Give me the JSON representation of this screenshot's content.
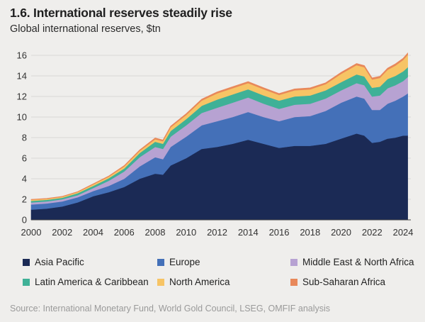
{
  "title": "1.6. International reserves steadily rise",
  "subtitle": "Global international reserves, $tn",
  "source": "Source: International Monetary Fund, World Gold Council, LSEG, OMFIF analysis",
  "chart_data": {
    "type": "area",
    "stacked": true,
    "ylim": [
      0,
      16
    ],
    "yticks": [
      "0",
      "2",
      "4",
      "6",
      "8",
      "10",
      "12",
      "14",
      "16"
    ],
    "xlim": [
      2000,
      2024.5
    ],
    "xticks": [
      "2000",
      "2002",
      "2004",
      "2006",
      "2008",
      "2010",
      "2012",
      "2014",
      "2016",
      "2018",
      "2020",
      "2022",
      "2024"
    ],
    "grid": true,
    "legend_position": "bottom",
    "x": [
      2000,
      2001,
      2002,
      2003,
      2004,
      2005,
      2006,
      2007,
      2008,
      2008.5,
      2009,
      2010,
      2011,
      2012,
      2013,
      2014,
      2015,
      2016,
      2017,
      2018,
      2019,
      2020,
      2021,
      2021.5,
      2022,
      2022.5,
      2023,
      2023.5,
      2024,
      2024.3
    ],
    "series": [
      {
        "name": "Asia Pacific",
        "color": "#1b2a55",
        "values": [
          1.0,
          1.1,
          1.3,
          1.7,
          2.3,
          2.7,
          3.2,
          4.0,
          4.5,
          4.4,
          5.3,
          6.0,
          6.9,
          7.1,
          7.4,
          7.8,
          7.4,
          7.0,
          7.2,
          7.2,
          7.4,
          7.9,
          8.4,
          8.2,
          7.5,
          7.6,
          7.9,
          8.0,
          8.2,
          8.2
        ]
      },
      {
        "name": "Europe",
        "color": "#4470b8",
        "values": [
          0.5,
          0.5,
          0.5,
          0.5,
          0.5,
          0.6,
          0.8,
          1.2,
          1.6,
          1.5,
          1.8,
          2.1,
          2.3,
          2.5,
          2.6,
          2.7,
          2.6,
          2.6,
          2.8,
          2.9,
          3.2,
          3.5,
          3.6,
          3.6,
          3.2,
          3.1,
          3.4,
          3.6,
          3.8,
          4.1
        ]
      },
      {
        "name": "Middle East & North Africa",
        "color": "#b7a2d2",
        "values": [
          0.2,
          0.2,
          0.2,
          0.2,
          0.3,
          0.5,
          0.7,
          0.9,
          1.0,
          1.0,
          1.0,
          1.1,
          1.2,
          1.3,
          1.4,
          1.4,
          1.3,
          1.2,
          1.2,
          1.2,
          1.2,
          1.2,
          1.3,
          1.3,
          1.3,
          1.4,
          1.5,
          1.5,
          1.5,
          1.6
        ]
      },
      {
        "name": "Latin America & Caribbean",
        "color": "#3fb197",
        "values": [
          0.15,
          0.15,
          0.15,
          0.2,
          0.2,
          0.25,
          0.3,
          0.4,
          0.5,
          0.5,
          0.55,
          0.6,
          0.7,
          0.8,
          0.8,
          0.8,
          0.8,
          0.8,
          0.8,
          0.8,
          0.8,
          0.8,
          0.85,
          0.85,
          0.85,
          0.85,
          0.9,
          0.9,
          0.95,
          0.95
        ]
      },
      {
        "name": "North America",
        "color": "#f7c465",
        "values": [
          0.1,
          0.1,
          0.1,
          0.1,
          0.15,
          0.15,
          0.2,
          0.2,
          0.25,
          0.25,
          0.35,
          0.4,
          0.5,
          0.6,
          0.6,
          0.6,
          0.6,
          0.55,
          0.6,
          0.6,
          0.6,
          0.8,
          0.9,
          0.9,
          0.8,
          0.85,
          0.9,
          1.0,
          1.1,
          1.2
        ]
      },
      {
        "name": "Sub-Saharan Africa",
        "color": "#e8885a",
        "values": [
          0.04,
          0.04,
          0.04,
          0.05,
          0.06,
          0.07,
          0.08,
          0.1,
          0.12,
          0.12,
          0.12,
          0.13,
          0.14,
          0.15,
          0.15,
          0.15,
          0.15,
          0.14,
          0.14,
          0.14,
          0.14,
          0.15,
          0.16,
          0.16,
          0.16,
          0.16,
          0.16,
          0.17,
          0.17,
          0.18
        ]
      }
    ]
  }
}
